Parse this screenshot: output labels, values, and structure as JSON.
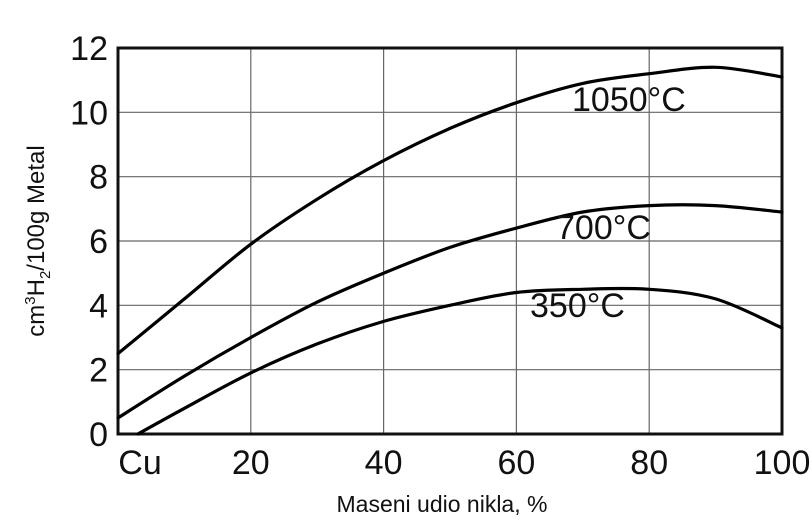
{
  "chart_data": {
    "type": "line",
    "xlabel": "Maseni udio nikla, %",
    "ylabel_parts": [
      "cm",
      "3",
      "H",
      "2",
      "/100g Metal"
    ],
    "xlim": [
      0,
      100
    ],
    "ylim": [
      0,
      12
    ],
    "x_ticks": [
      {
        "value": 0,
        "label": "Cu"
      },
      {
        "value": 20,
        "label": "20"
      },
      {
        "value": 40,
        "label": "40"
      },
      {
        "value": 60,
        "label": "60"
      },
      {
        "value": 80,
        "label": "80"
      },
      {
        "value": 100,
        "label": "100"
      }
    ],
    "y_ticks": [
      0,
      2,
      4,
      6,
      8,
      10,
      12
    ],
    "grid": true,
    "series": [
      {
        "name": "1050°C",
        "x": [
          0,
          10,
          20,
          30,
          40,
          50,
          60,
          70,
          80,
          90,
          100
        ],
        "y": [
          2.5,
          4.2,
          5.9,
          7.3,
          8.5,
          9.5,
          10.3,
          10.9,
          11.2,
          11.4,
          11.1
        ]
      },
      {
        "name": "700°C",
        "x": [
          0,
          10,
          20,
          30,
          40,
          50,
          60,
          70,
          80,
          90,
          100
        ],
        "y": [
          0.5,
          1.8,
          3.0,
          4.1,
          5.0,
          5.8,
          6.4,
          6.9,
          7.1,
          7.1,
          6.9
        ]
      },
      {
        "name": "350°C",
        "x": [
          3,
          10,
          20,
          30,
          40,
          50,
          60,
          70,
          80,
          90,
          100
        ],
        "y": [
          0.0,
          0.8,
          1.9,
          2.8,
          3.5,
          4.0,
          4.4,
          4.5,
          4.5,
          4.2,
          3.3
        ]
      }
    ]
  }
}
